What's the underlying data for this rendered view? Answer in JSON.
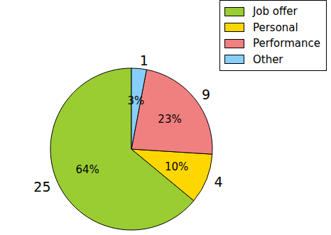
{
  "chart_data": {
    "type": "pie",
    "categories": [
      "Job offer",
      "Personal",
      "Performance",
      "Other"
    ],
    "values": [
      64,
      10,
      23,
      3
    ],
    "value_labels": [
      "64%",
      "10%",
      "23%",
      "3%"
    ],
    "counts": [
      25,
      4,
      9,
      1
    ],
    "colors": [
      "#9acd32",
      "#ffd700",
      "#f08080",
      "#87cefa"
    ],
    "data_labels": true,
    "legend": "upper right"
  }
}
